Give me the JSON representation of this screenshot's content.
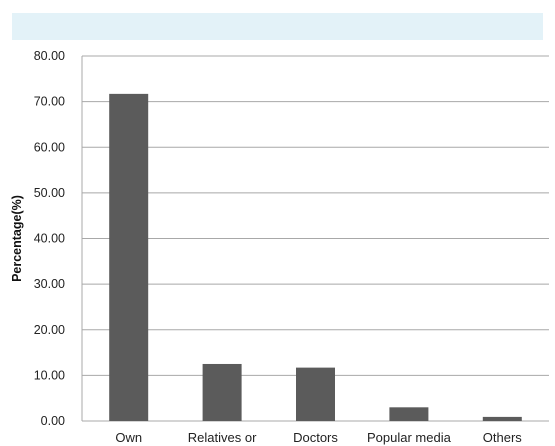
{
  "colors": {
    "header_band": "#e3f2f8",
    "bar": "#5b5b5b",
    "grid": "#a8a8a8"
  },
  "chart_data": {
    "type": "bar",
    "categories": [
      "Own",
      "Relatives or",
      "Doctors",
      "Popular media",
      "Others"
    ],
    "values": [
      71.7,
      12.5,
      11.7,
      3.0,
      0.9
    ],
    "ylabel": "Percentage(%)",
    "xlabel": "",
    "ylim": [
      0,
      80
    ],
    "yticks": [
      "0.00",
      "10.00",
      "20.00",
      "30.00",
      "40.00",
      "50.00",
      "60.00",
      "70.00",
      "80.00"
    ],
    "grid": true,
    "legend": "none"
  }
}
